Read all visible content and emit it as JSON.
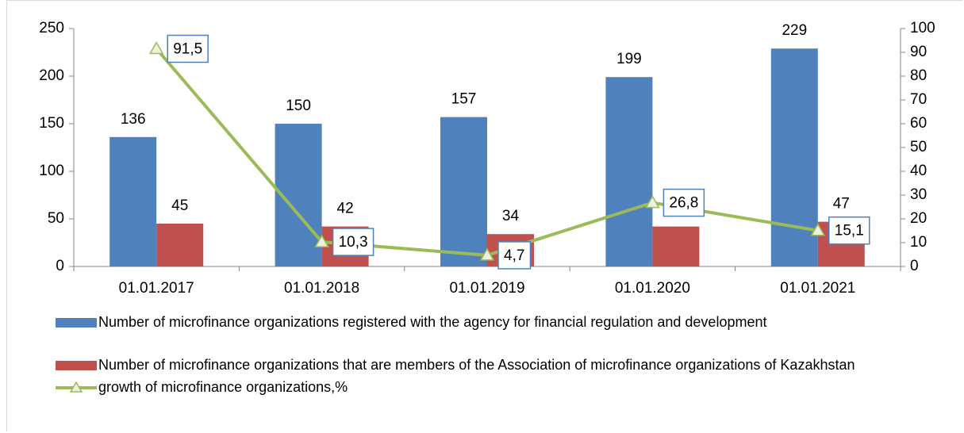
{
  "chart_data": {
    "type": "bar-line",
    "categories": [
      "01.01.2017",
      "01.01.2018",
      "01.01.2019",
      "01.01.2020",
      "01.01.2021"
    ],
    "series": [
      {
        "name": "Number of microfinance organizations registered with the agency for financial regulation and development",
        "type": "bar",
        "color": "#4f81bd",
        "values": [
          136,
          150,
          157,
          199,
          229
        ]
      },
      {
        "name": "Number of microfinance organizations that are members of the Association of microfinance organizations of Kazakhstan",
        "type": "bar",
        "color": "#c0504d",
        "values": [
          45,
          42,
          34,
          42,
          47
        ],
        "value_labels": [
          "45",
          "42",
          "34",
          null,
          "47"
        ]
      },
      {
        "name": "growth of microfinance organizations,%",
        "type": "line",
        "axis": "y2",
        "color": "#9bbb59",
        "values": [
          91.5,
          10.3,
          4.7,
          26.8,
          15.1
        ],
        "value_labels": [
          "91,5",
          "10,3",
          "4,7",
          "26,8",
          "15,1"
        ]
      }
    ],
    "ylim": [
      0,
      250
    ],
    "yticks": [
      0,
      50,
      100,
      150,
      200,
      250
    ],
    "y2lim": [
      0,
      100
    ],
    "y2ticks": [
      0,
      10,
      20,
      30,
      40,
      50,
      60,
      70,
      80,
      90,
      100
    ],
    "legend": "bottom"
  }
}
